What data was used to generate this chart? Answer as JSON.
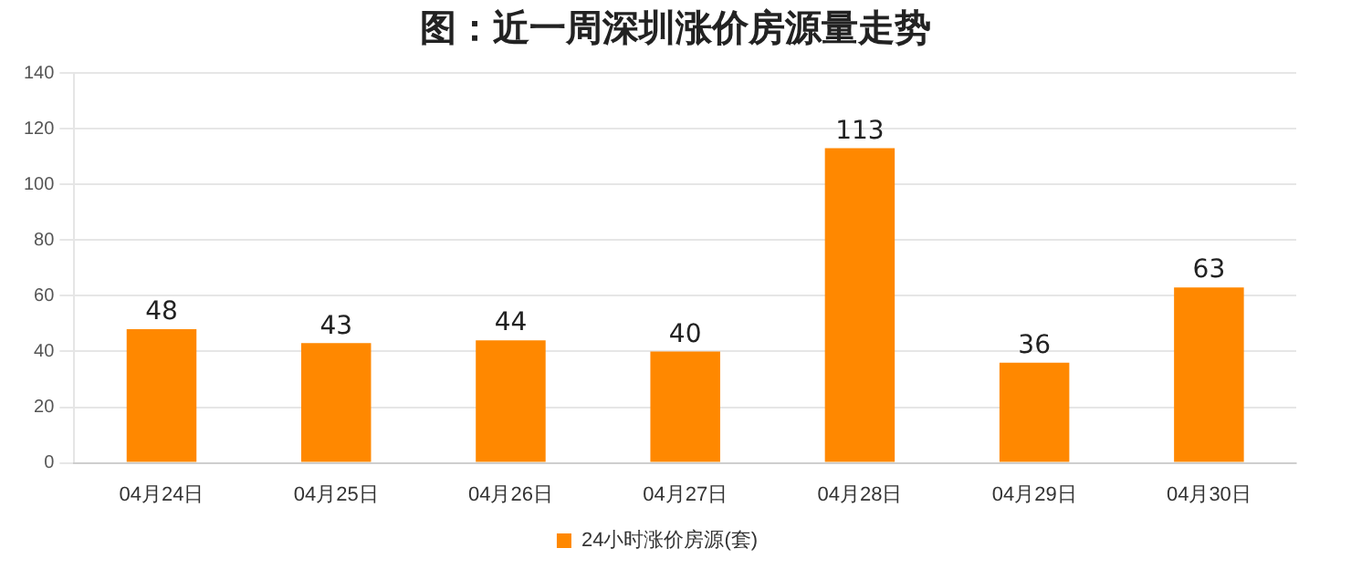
{
  "chart_data": {
    "type": "bar",
    "title": "图：近一周深圳涨价房源量走势",
    "categories": [
      "04月24日",
      "04月25日",
      "04月26日",
      "04月27日",
      "04月28日",
      "04月29日",
      "04月30日"
    ],
    "series": [
      {
        "name": "24小时涨价房源(套)",
        "color": "#ff8800",
        "values": [
          48,
          43,
          44,
          40,
          113,
          36,
          63
        ]
      }
    ],
    "ylim": [
      0,
      140
    ],
    "yticks": [
      0,
      20,
      40,
      60,
      80,
      100,
      120,
      140
    ],
    "grid": "y",
    "legend": "bottom",
    "data_labels": true
  }
}
